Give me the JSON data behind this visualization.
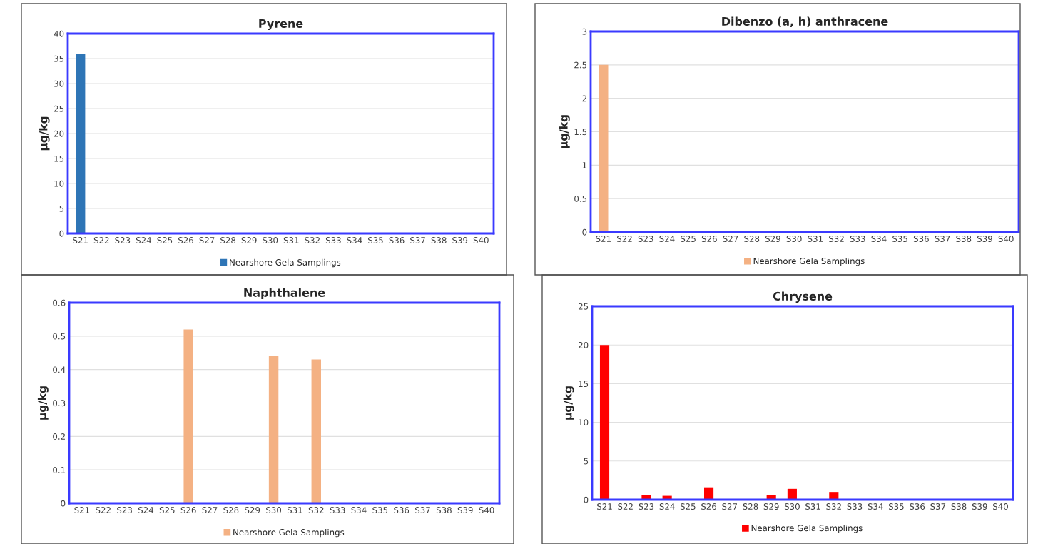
{
  "chart_data": [
    {
      "type": "bar",
      "title": "Pyrene",
      "ylabel": "µg/kg",
      "categories": [
        "S21",
        "S22",
        "S23",
        "S24",
        "S25",
        "S26",
        "S27",
        "S28",
        "S29",
        "S30",
        "S31",
        "S32",
        "S33",
        "S34",
        "S35",
        "S36",
        "S37",
        "S38",
        "S39",
        "S40"
      ],
      "series": [
        {
          "name": "Nearshore Gela Samplings",
          "color": "#2e75b6",
          "values": [
            36,
            null,
            null,
            null,
            null,
            null,
            null,
            null,
            null,
            null,
            null,
            null,
            null,
            null,
            null,
            null,
            null,
            null,
            null,
            null
          ]
        }
      ],
      "ylim": [
        0,
        40
      ],
      "yticks": [
        0,
        5,
        10,
        15,
        20,
        25,
        30,
        35,
        40
      ],
      "grid": "y",
      "legend": "bottom"
    },
    {
      "type": "bar",
      "title": "Dibenzo (a, h) anthracene",
      "ylabel": "µg/kg",
      "categories": [
        "S21",
        "S22",
        "S23",
        "S24",
        "S25",
        "S26",
        "S27",
        "S28",
        "S29",
        "S30",
        "S31",
        "S32",
        "S33",
        "S34",
        "S35",
        "S36",
        "S37",
        "S38",
        "S39",
        "S40"
      ],
      "series": [
        {
          "name": "Nearshore Gela Samplings",
          "color": "#f4b183",
          "values": [
            2.5,
            null,
            null,
            null,
            null,
            null,
            null,
            null,
            null,
            null,
            null,
            null,
            null,
            null,
            null,
            null,
            null,
            null,
            null,
            null
          ]
        }
      ],
      "ylim": [
        0,
        3
      ],
      "yticks": [
        0,
        0.5,
        1,
        1.5,
        2,
        2.5,
        3
      ],
      "grid": "y",
      "legend": "bottom"
    },
    {
      "type": "bar",
      "title": "Naphthalene",
      "ylabel": "µg/kg",
      "categories": [
        "S21",
        "S22",
        "S23",
        "S24",
        "S25",
        "S26",
        "S27",
        "S28",
        "S29",
        "S30",
        "S31",
        "S32",
        "S33",
        "S34",
        "S35",
        "S36",
        "S37",
        "S38",
        "S39",
        "S40"
      ],
      "series": [
        {
          "name": "Nearshore Gela Samplings",
          "color": "#f4b183",
          "values": [
            null,
            null,
            null,
            null,
            null,
            0.52,
            null,
            null,
            null,
            0.44,
            null,
            0.43,
            null,
            null,
            null,
            null,
            null,
            null,
            null,
            null
          ]
        }
      ],
      "ylim": [
        0,
        0.6
      ],
      "yticks": [
        0,
        0.1,
        0.2,
        0.3,
        0.4,
        0.5,
        0.6
      ],
      "grid": "y",
      "legend": "bottom"
    },
    {
      "type": "bar",
      "title": "Chrysene",
      "ylabel": "µg/kg",
      "categories": [
        "S21",
        "S22",
        "S23",
        "S24",
        "S25",
        "S26",
        "S27",
        "S28",
        "S29",
        "S30",
        "S31",
        "S32",
        "S33",
        "S34",
        "S35",
        "S36",
        "S37",
        "S38",
        "S39",
        "S40"
      ],
      "series": [
        {
          "name": "Nearshore Gela Samplings",
          "color": "#ff0000",
          "values": [
            20,
            null,
            0.6,
            0.5,
            null,
            1.6,
            null,
            null,
            0.6,
            1.4,
            null,
            1.0,
            null,
            null,
            null,
            null,
            null,
            null,
            null,
            null
          ]
        }
      ],
      "ylim": [
        0,
        25
      ],
      "yticks": [
        0,
        5,
        10,
        15,
        20,
        25
      ],
      "grid": "y",
      "legend": "bottom"
    }
  ]
}
